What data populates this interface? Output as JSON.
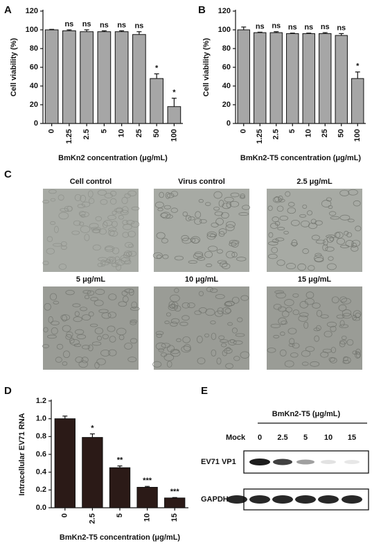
{
  "chart_data": [
    {
      "panel": "A",
      "type": "bar",
      "ylabel": "Cell viability (%)",
      "xlabel": "BmKn2 concentration (μg/mL)",
      "categories": [
        "0",
        "1.25",
        "2.5",
        "5",
        "10",
        "25",
        "50",
        "100"
      ],
      "values": [
        100,
        99,
        98,
        98,
        98,
        95,
        48,
        18
      ],
      "errors": [
        0.5,
        1,
        2,
        1,
        1,
        3,
        5,
        9
      ],
      "annotations": [
        null,
        "ns",
        "ns",
        "ns",
        "ns",
        "ns",
        "*",
        "*"
      ],
      "ylim": [
        0,
        120
      ],
      "yticks": [
        0,
        20,
        40,
        60,
        80,
        100,
        120
      ],
      "color": "#a6a6a6"
    },
    {
      "panel": "B",
      "type": "bar",
      "ylabel": "Cell viability (%)",
      "xlabel": "BmKn2-T5 concentration (μg/mL)",
      "categories": [
        "0",
        "1.25",
        "2.5",
        "5",
        "10",
        "25",
        "50",
        "100"
      ],
      "values": [
        100,
        97,
        97,
        96,
        96,
        96,
        94,
        48
      ],
      "errors": [
        3,
        0.5,
        1,
        0.5,
        0.5,
        1,
        2,
        7
      ],
      "annotations": [
        null,
        "ns",
        "ns",
        "ns",
        "ns",
        "ns",
        "ns",
        "*"
      ],
      "ylim": [
        0,
        120
      ],
      "yticks": [
        0,
        20,
        40,
        60,
        80,
        100,
        120
      ],
      "color": "#a6a6a6"
    },
    {
      "panel": "D",
      "type": "bar",
      "ylabel": "Intracellular EV71 RNA",
      "xlabel": "BmKn2-T5 concentration (μg/mL)",
      "categories": [
        "0",
        "2.5",
        "5",
        "10",
        "15"
      ],
      "values": [
        1.0,
        0.79,
        0.45,
        0.23,
        0.11
      ],
      "errors": [
        0.03,
        0.04,
        0.02,
        0.01,
        0.005
      ],
      "annotations": [
        null,
        "*",
        "**",
        "***",
        "***"
      ],
      "ylim": [
        0,
        1.2
      ],
      "yticks": [
        {
          "value": 0,
          "label": "0.0"
        },
        0.2,
        0.4,
        0.6,
        0.8,
        {
          "value": 1,
          "label": "1.0"
        },
        1.2
      ],
      "color": "#2b1a17"
    }
  ],
  "micrographs": {
    "panel": "C",
    "labels": [
      "Cell control",
      "Virus control",
      "2.5 μg/mL",
      "5 μg/mL",
      "10 μg/mL",
      "15 μg/mL"
    ]
  },
  "blot": {
    "panel": "E",
    "title": "BmKn2-T5 (μg/mL)",
    "lanes": [
      "Mock",
      "0",
      "2.5",
      "5",
      "10",
      "15"
    ],
    "rows": [
      "EV71 VP1",
      "GAPDH"
    ]
  }
}
